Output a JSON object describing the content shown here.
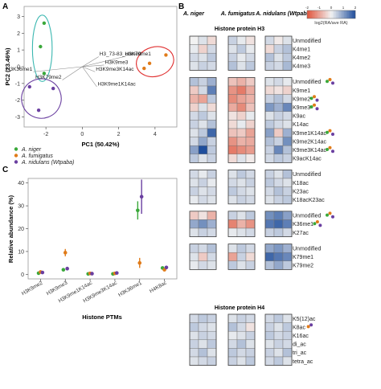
{
  "panels": {
    "a": "A",
    "b": "B",
    "c": "C"
  },
  "colors": {
    "niger": "#3aa83a",
    "fumigatus": "#e07b1a",
    "nidulans": "#6a3fa0",
    "heat_low": "#e0533a",
    "heat_mid": "#f2f2f2",
    "heat_high": "#1f4e9c",
    "ellipse_niger": "#3ab7b0",
    "ellipse_fumigatus": "#e03030",
    "ellipse_nidulans": "#6a3fa0"
  },
  "pca": {
    "xlabel": "PC1 (50.42%)",
    "ylabel": "PC2 (23.46%)",
    "xlim": [
      -3.2,
      5.2
    ],
    "ylim": [
      -3.6,
      3.6
    ],
    "xticks": [
      -2,
      0,
      2,
      4
    ],
    "yticks": [
      -3,
      -2,
      -1,
      0,
      1,
      2,
      3
    ],
    "points": [
      {
        "g": "niger",
        "x": -2.1,
        "y": 2.6
      },
      {
        "g": "niger",
        "x": -2.3,
        "y": 1.2
      },
      {
        "g": "niger",
        "x": -2.1,
        "y": -0.4
      },
      {
        "g": "fumigatus",
        "x": 3.7,
        "y": 0.2
      },
      {
        "g": "fumigatus",
        "x": 4.6,
        "y": 0.7
      },
      {
        "g": "fumigatus",
        "x": 3.4,
        "y": -0.1
      },
      {
        "g": "nidulans",
        "x": -2.9,
        "y": -1.2
      },
      {
        "g": "nidulans",
        "x": -1.6,
        "y": -1.3
      },
      {
        "g": "nidulans",
        "x": -2.4,
        "y": -2.6
      }
    ],
    "loadings": [
      {
        "label": "H3_73-83_unmod",
        "x": 0.9,
        "y": 0.6
      },
      {
        "label": "H3K79me1",
        "x": 2.3,
        "y": 0.6
      },
      {
        "label": "H3K9me3",
        "x": 1.2,
        "y": 0.1
      },
      {
        "label": "H3K9me3K14ac",
        "x": 0.7,
        "y": -0.3
      },
      {
        "label": "H3K36me1",
        "x": -2.7,
        "y": -0.3
      },
      {
        "label": "H3K79me2",
        "x": -1.1,
        "y": -0.8
      },
      {
        "label": "H3K9me1K14ac",
        "x": 0.8,
        "y": -1.2
      }
    ],
    "legend": [
      {
        "g": "niger",
        "label": "A. niger"
      },
      {
        "g": "fumigatus",
        "label": "A. fumigatus"
      },
      {
        "g": "nidulans",
        "label": "A. nidulans (Wtpaba)"
      }
    ]
  },
  "chart_data": {
    "type": "scatter",
    "xlabel": "Histone PTMs",
    "ylabel": "Relative abundance (%)",
    "ylim": [
      -2,
      42
    ],
    "yticks": [
      0,
      10,
      20,
      30,
      40
    ],
    "categories": [
      "H3K9me2",
      "H3K9me3",
      "H3K9me1K14ac",
      "H3K9me3K14ac",
      "H3K36me1",
      "H4K8ac"
    ],
    "series": [
      {
        "name": "A. niger",
        "color": "#3aa83a",
        "values": [
          0.5,
          2.0,
          0.2,
          0.2,
          28.0,
          2.8
        ],
        "err": [
          0.5,
          0.7,
          0.3,
          0.3,
          4.0,
          0.6
        ]
      },
      {
        "name": "A. fumigatus",
        "color": "#e07b1a",
        "values": [
          1.0,
          9.5,
          0.4,
          0.4,
          5.0,
          2.0
        ],
        "err": [
          0.7,
          1.6,
          0.5,
          0.5,
          2.2,
          0.6
        ]
      },
      {
        "name": "A. nidulans (Wtpaba)",
        "color": "#6a3fa0",
        "values": [
          0.8,
          2.5,
          0.3,
          0.6,
          34.0,
          3.0
        ],
        "err": [
          0.6,
          0.8,
          0.4,
          0.4,
          7.5,
          0.8
        ]
      }
    ]
  },
  "heatmap": {
    "species_headers": [
      {
        "g": "niger",
        "label": "A. niger"
      },
      {
        "g": "fumigatus",
        "label": "A. fumigatus"
      },
      {
        "g": "nidulans",
        "label": "A. nidulans (Wtpaba)"
      }
    ],
    "scale_label": "log2(RA/ave RA)",
    "scale_ticks": [
      "-2",
      "-1",
      "0",
      "1",
      "2"
    ],
    "section_h3": "Histone protein H3",
    "section_h4": "Histone protein H4",
    "blocks": [
      {
        "rows": [
          {
            "label": "Unmodified",
            "marks": []
          },
          {
            "label": "K4me1",
            "marks": []
          },
          {
            "label": "K4me2",
            "marks": []
          },
          {
            "label": "K4me3",
            "marks": []
          }
        ]
      },
      {
        "rows": [
          {
            "label": "Unmodified",
            "marks": [
              "niger",
              "fumigatus",
              "nidulans"
            ]
          },
          {
            "label": "K9me1",
            "marks": []
          },
          {
            "label": "K9me2",
            "marks": [
              "niger",
              "fumigatus",
              "nidulans"
            ]
          },
          {
            "label": "K9me3",
            "marks": [
              "niger",
              "fumigatus",
              "nidulans"
            ]
          },
          {
            "label": "K9ac",
            "marks": []
          },
          {
            "label": "K14ac",
            "marks": []
          },
          {
            "label": "K9me1K14ac",
            "marks": [
              "niger",
              "fumigatus",
              "nidulans"
            ]
          },
          {
            "label": "K9me2K14ac",
            "marks": []
          },
          {
            "label": "K9me3K14ac",
            "marks": [
              "niger",
              "fumigatus",
              "nidulans"
            ]
          },
          {
            "label": "K9acK14ac",
            "marks": []
          }
        ]
      },
      {
        "rows": [
          {
            "label": "Unmodified",
            "marks": []
          },
          {
            "label": "K18ac",
            "marks": []
          },
          {
            "label": "K23ac",
            "marks": []
          },
          {
            "label": "K18acK23ac",
            "marks": []
          }
        ]
      },
      {
        "rows": [
          {
            "label": "Unmodified",
            "marks": [
              "niger",
              "fumigatus",
              "nidulans"
            ]
          },
          {
            "label": "K36me1",
            "marks": [
              "niger",
              "fumigatus",
              "nidulans"
            ]
          },
          {
            "label": "K27ac",
            "marks": []
          }
        ]
      },
      {
        "rows": [
          {
            "label": "Unmodified",
            "marks": []
          },
          {
            "label": "K79me1",
            "marks": []
          },
          {
            "label": "K79me2",
            "marks": []
          }
        ]
      },
      {
        "h4": true,
        "rows": [
          {
            "label": "K5(12)ac",
            "marks": []
          },
          {
            "label": "K8ac",
            "marks": [
              "fumigatus",
              "nidulans"
            ]
          },
          {
            "label": "K16ac",
            "marks": []
          },
          {
            "label": "di_ac",
            "marks": []
          },
          {
            "label": "tri_ac",
            "marks": []
          },
          {
            "label": "tetra_ac",
            "marks": []
          }
        ]
      }
    ],
    "values": [
      [
        [
          0,
          0.2,
          -0.3,
          0.4,
          0.1,
          -0.2,
          0.3,
          -0.1,
          0.2
        ],
        [
          0.1,
          -0.4,
          0.3,
          0.2,
          0.5,
          0.1,
          -0.3,
          0.4,
          0.6
        ],
        [
          0.3,
          0.2,
          0.5,
          0.4,
          0.1,
          0.3,
          0.6,
          0.2,
          0.5
        ],
        [
          0.2,
          0.4,
          0.3,
          0.6,
          0.2,
          0.5,
          0.4,
          0.3,
          0.7
        ]
      ],
      [
        [
          0.6,
          0.4,
          0.8,
          -0.6,
          -0.8,
          -0.5,
          0.2,
          0.3,
          0.1
        ],
        [
          -0.5,
          0.3,
          1.4,
          -1.2,
          -1.5,
          -0.9,
          -0.3,
          -0.2,
          -0.4
        ],
        [
          -0.8,
          -1.0,
          0.5,
          -1.3,
          -1.0,
          -0.8,
          0.4,
          0.6,
          0.3
        ],
        [
          -0.4,
          0.2,
          -0.3,
          -0.9,
          -1.3,
          -0.6,
          1.1,
          0.8,
          1.3
        ],
        [
          0.3,
          0.5,
          0.2,
          -0.2,
          -0.4,
          0.1,
          0.2,
          0.4,
          0.3
        ],
        [
          0.4,
          0.2,
          0.6,
          -0.3,
          0.1,
          -0.4,
          0.5,
          0.3,
          0.2
        ],
        [
          0.2,
          0.5,
          1.7,
          -0.6,
          -0.5,
          -1.0,
          1.0,
          -0.5,
          0.8
        ],
        [
          0.3,
          0.9,
          0.4,
          -1.2,
          -0.8,
          -0.9,
          0.6,
          0.4,
          1.2
        ],
        [
          1.0,
          2.0,
          0.5,
          -1.5,
          -1.3,
          -1.1,
          0.4,
          1.3,
          0.6
        ],
        [
          0.5,
          0.2,
          0.4,
          -0.3,
          0.2,
          -0.1,
          0.3,
          0.5,
          0.4
        ]
      ],
      [
        [
          0.3,
          0.1,
          0.4,
          0.2,
          0.5,
          0.3,
          0.4,
          0.2,
          0.6
        ],
        [
          0.2,
          0.4,
          0.1,
          0.3,
          0.2,
          0.4,
          0.5,
          0.3,
          0.2
        ],
        [
          0.4,
          0.2,
          0.3,
          0.5,
          0.3,
          0.2,
          0.3,
          0.6,
          0.4
        ],
        [
          0.1,
          0.3,
          0.2,
          0.2,
          0.4,
          0.3,
          0.2,
          0.4,
          0.5
        ]
      ],
      [
        [
          -0.5,
          -0.2,
          -0.8,
          0.4,
          0.2,
          0.5,
          1.2,
          1.4,
          1.0
        ],
        [
          0.9,
          1.2,
          0.8,
          -1.4,
          -0.8,
          -1.2,
          1.5,
          1.7,
          1.4
        ],
        [
          0.2,
          0.4,
          0.3,
          0.1,
          0.2,
          0.3,
          0.4,
          0.5,
          0.3
        ]
      ],
      [
        [
          0.4,
          0.3,
          0.6,
          0.2,
          0.5,
          0.3,
          0.9,
          1.1,
          0.8
        ],
        [
          0.2,
          -0.5,
          0.3,
          -1.0,
          0.4,
          -0.3,
          1.7,
          1.5,
          1.3
        ],
        [
          0.1,
          0.3,
          0.2,
          0.5,
          0.2,
          0.4,
          0.6,
          0.9,
          0.5
        ]
      ],
      [
        [
          0.3,
          0.5,
          0.4,
          0.2,
          0.4,
          0.3,
          0.3,
          0.5,
          0.2
        ],
        [
          0.5,
          0.3,
          0.2,
          0.6,
          0.3,
          -0.2,
          0.4,
          0.2,
          0.5
        ],
        [
          0.2,
          0.4,
          0.3,
          0.1,
          0.2,
          0.4,
          0.5,
          0.3,
          0.4
        ],
        [
          0.4,
          0.2,
          0.5,
          0.3,
          0.6,
          0.2,
          0.2,
          0.4,
          0.3
        ],
        [
          0.3,
          0.6,
          0.2,
          0.5,
          0.3,
          0.4,
          0.4,
          0.2,
          0.6
        ],
        [
          0.2,
          0.3,
          0.4,
          0.4,
          0.2,
          0.5,
          0.3,
          0.5,
          0.2
        ]
      ]
    ]
  }
}
